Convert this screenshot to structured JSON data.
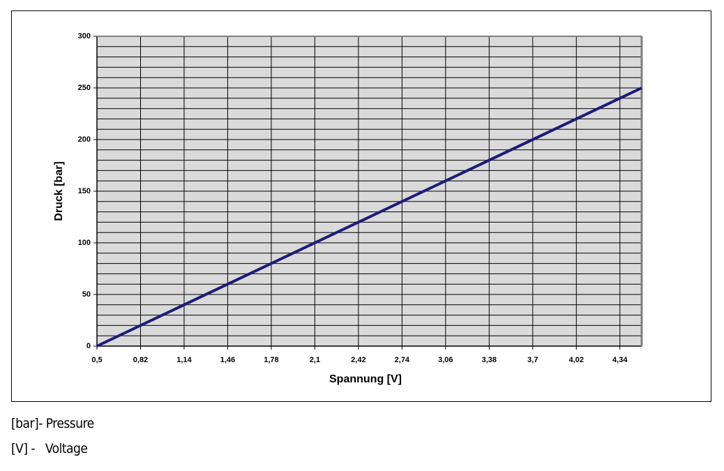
{
  "chart_data": {
    "type": "line",
    "ylabel": "Druck [bar]",
    "xlabel": "Spannung [V]",
    "x": [
      0.5,
      4.5
    ],
    "values": [
      0,
      250
    ],
    "color": "#1c1c78",
    "xlim": [
      0.5,
      4.5
    ],
    "xticks": [
      {
        "value": 0.5,
        "label": "0,5"
      },
      {
        "value": 0.82,
        "label": "0,82"
      },
      {
        "value": 1.14,
        "label": "1,14"
      },
      {
        "value": 1.46,
        "label": "1,46"
      },
      {
        "value": 1.78,
        "label": "1,78"
      },
      {
        "value": 2.1,
        "label": "2,1"
      },
      {
        "value": 2.42,
        "label": "2,42"
      },
      {
        "value": 2.74,
        "label": "2,74"
      },
      {
        "value": 3.06,
        "label": "3,06"
      },
      {
        "value": 3.38,
        "label": "3,38"
      },
      {
        "value": 3.7,
        "label": "3,7"
      },
      {
        "value": 4.02,
        "label": "4,02"
      },
      {
        "value": 4.34,
        "label": "4,34"
      }
    ],
    "ylim": [
      0,
      300
    ],
    "yticks": [
      0,
      50,
      100,
      150,
      200,
      250,
      300
    ],
    "ygrid": [
      10,
      20,
      30,
      40,
      50,
      60,
      70,
      80,
      90,
      100,
      110,
      120,
      130,
      140,
      150,
      160,
      170,
      180,
      190,
      200,
      210,
      220,
      230,
      240,
      250,
      260,
      270,
      280,
      290
    ],
    "grid": true
  },
  "notes": [
    "[bar]- Pressure",
    "[V] -   Voltage"
  ]
}
